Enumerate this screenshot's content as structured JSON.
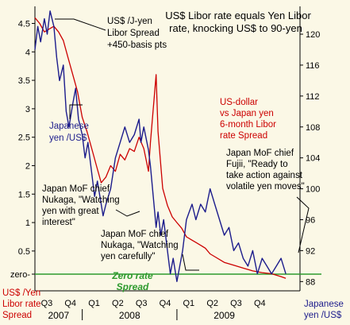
{
  "chart_data": {
    "type": "line",
    "title": "US$ Libor rate equals Yen Libor rate, knocking US$ to 90-yen",
    "left_axis": {
      "label": "US$ /Yen Libor rate Spread",
      "ticks": [
        "zero-",
        "0.5",
        "1",
        "1.5",
        "2",
        "2.5",
        "3",
        "3.5",
        "4",
        "4.5"
      ],
      "tick_values": [
        0,
        0.5,
        1,
        1.5,
        2,
        2.5,
        3,
        3.5,
        4,
        4.5
      ],
      "ylim": [
        -0.2,
        4.8
      ]
    },
    "right_axis": {
      "label": "Japanese yen /US$",
      "ticks": [
        "88",
        "92",
        "96",
        "100",
        "104",
        "108",
        "112",
        "116",
        "120"
      ],
      "ylim": [
        86.8,
        123.6
      ]
    },
    "x_axis": {
      "quarters": [
        "Q3",
        "Q4",
        "Q1",
        "Q2",
        "Q3",
        "Q4",
        "Q1",
        "Q2",
        "Q3",
        "Q4"
      ],
      "years": [
        "2007",
        "2008",
        "2009"
      ],
      "xlim": [
        2007.5,
        2010.3
      ]
    },
    "series": [
      {
        "name": "US-dollar vs Japan yen 6-month Libor rate Spread",
        "axis": "left",
        "color": "#cc0000",
        "x": [
          2007.5,
          2007.55,
          2007.6,
          2007.65,
          2007.7,
          2007.75,
          2007.8,
          2007.85,
          2007.9,
          2007.95,
          2008.0,
          2008.05,
          2008.1,
          2008.15,
          2008.2,
          2008.25,
          2008.3,
          2008.35,
          2008.4,
          2008.45,
          2008.5,
          2008.55,
          2008.6,
          2008.65,
          2008.7,
          2008.72,
          2008.75,
          2008.78,
          2008.8,
          2008.85,
          2008.9,
          2008.95,
          2009.0,
          2009.05,
          2009.1,
          2009.15,
          2009.2,
          2009.25,
          2009.3,
          2009.35,
          2009.4,
          2009.5,
          2009.6,
          2009.7,
          2009.8,
          2009.9,
          2010.0,
          2010.1,
          2010.15
        ],
        "values": [
          4.6,
          4.5,
          4.35,
          4.4,
          4.45,
          4.35,
          4.2,
          3.9,
          3.6,
          3.3,
          2.85,
          2.6,
          2.3,
          2.0,
          1.7,
          1.8,
          2.0,
          1.9,
          2.2,
          2.1,
          2.3,
          2.25,
          2.5,
          2.3,
          1.9,
          2.4,
          3.0,
          3.6,
          2.6,
          1.6,
          1.3,
          1.1,
          1.0,
          0.9,
          0.75,
          0.7,
          0.65,
          0.6,
          0.55,
          0.45,
          0.4,
          0.3,
          0.25,
          0.2,
          0.15,
          0.12,
          0.1,
          0.05,
          0.02
        ]
      },
      {
        "name": "Japanese yen /US$",
        "axis": "right",
        "color": "#1c1c8c",
        "x": [
          2007.5,
          2007.53,
          2007.56,
          2007.6,
          2007.63,
          2007.66,
          2007.7,
          2007.73,
          2007.76,
          2007.8,
          2007.83,
          2007.86,
          2007.9,
          2007.93,
          2007.96,
          2008.0,
          2008.03,
          2008.06,
          2008.1,
          2008.13,
          2008.16,
          2008.2,
          2008.22,
          2008.25,
          2008.3,
          2008.35,
          2008.4,
          2008.45,
          2008.5,
          2008.55,
          2008.6,
          2008.62,
          2008.65,
          2008.7,
          2008.72,
          2008.75,
          2008.78,
          2008.8,
          2008.83,
          2008.86,
          2008.9,
          2008.93,
          2008.96,
          2009.0,
          2009.03,
          2009.06,
          2009.1,
          2009.13,
          2009.16,
          2009.2,
          2009.25,
          2009.3,
          2009.35,
          2009.4,
          2009.45,
          2009.5,
          2009.55,
          2009.6,
          2009.65,
          2009.7,
          2009.75,
          2009.8,
          2009.85,
          2009.9,
          2009.95,
          2010.0,
          2010.05,
          2010.1,
          2010.15
        ],
        "values": [
          118,
          121,
          119,
          122,
          120,
          123,
          121,
          117,
          114,
          116,
          110,
          108,
          111,
          113,
          109,
          107,
          104,
          106,
          102,
          99,
          101,
          98,
          96.5,
          98,
          100,
          104,
          106,
          108,
          106,
          107,
          109,
          106,
          108,
          105,
          103,
          99,
          95,
          97,
          94,
          96,
          92,
          89,
          91,
          88,
          90,
          92,
          96,
          97,
          98,
          96,
          98,
          97,
          100,
          98,
          96,
          94,
          95,
          92,
          93,
          91,
          90,
          92,
          89,
          91,
          90,
          89,
          90,
          91,
          89
        ]
      }
    ],
    "zero_line": {
      "value": 0,
      "color": "#2e9a2e"
    },
    "annotations": [
      {
        "text": "US$ /J-yen Libor Spread +450-basis pts"
      },
      {
        "text": "US-dollar vs Japan yen 6-month Libor rate Spread"
      },
      {
        "text": "Japanese yen /US$"
      },
      {
        "text": "Japan MoF chief Nukaga, \"Watching yen with great interest\""
      },
      {
        "text": "Japan MoF chief Nukaga, \"Watching yen carefully\""
      },
      {
        "text": "Japan MoF chief Fujii, \"Ready to take action against volatile yen moves\""
      },
      {
        "text": "Zero rate Spread"
      }
    ]
  },
  "labels": {
    "title_l1": "US$ Libor rate equals Yen Libor",
    "title_l2": "rate, knocking US$ to 90-yen",
    "spread_top_l1": "US$ /J-yen",
    "spread_top_l2": "Libor Spread",
    "spread_top_l3": "+450-basis pts",
    "red_l1": "US-dollar",
    "red_l2": "vs Japan yen",
    "red_l3": "6-month Libor",
    "red_l4": "rate Spread",
    "yen_l1": "Japanese",
    "yen_l2": "yen /US$",
    "nukaga1_l1": "Japan MoF chief",
    "nukaga1_l2": "Nukaga, \"Watching",
    "nukaga1_l3": "yen with great",
    "nukaga1_l4": "interest\"",
    "nukaga2_l1": "Japan MoF chief",
    "nukaga2_l2": "Nukaga, \"Watching",
    "nukaga2_l3": "yen carefully\"",
    "fujii_l1": "Japan MoF chief",
    "fujii_l2": "Fujii, \"Ready to",
    "fujii_l3": "take action against",
    "fujii_l4": "volatile yen moves\"",
    "zero_l1": "Zero rate",
    "zero_l2": "Spread",
    "left_label_l1": "US$ /Yen",
    "left_label_l2": "Libor rate",
    "left_label_l3": "Spread",
    "right_label_l1": "Japanese",
    "right_label_l2": "yen /US$"
  }
}
